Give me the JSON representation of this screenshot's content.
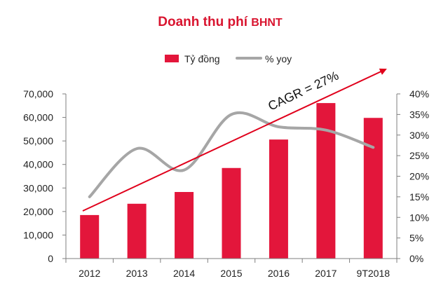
{
  "chart_data": {
    "type": "bar",
    "title_main": "Doanh thu phí ",
    "title_suffix": "BHNT",
    "categories": [
      "2012",
      "2013",
      "2014",
      "2015",
      "2016",
      "2017",
      "9T2018"
    ],
    "series": [
      {
        "name": "Tỷ đồng",
        "type": "bar",
        "axis": "left",
        "values": [
          18500,
          23300,
          28300,
          38500,
          50600,
          66100,
          59800
        ]
      },
      {
        "name": "% yoy",
        "type": "line",
        "axis": "right",
        "smooth": true,
        "values": [
          15,
          26.7,
          21.5,
          35,
          32,
          31.2,
          27
        ]
      }
    ],
    "left_axis": {
      "ylim": [
        0,
        70000
      ],
      "ticks": [
        "0",
        "10,000",
        "20,000",
        "30,000",
        "40,000",
        "50,000",
        "60,000",
        "70,000"
      ]
    },
    "right_axis": {
      "ylim": [
        0,
        40
      ],
      "ticks": [
        "0%",
        "5%",
        "10%",
        "15%",
        "20%",
        "25%",
        "30%",
        "35%",
        "40%"
      ]
    },
    "annotation": {
      "text": "CAGR = 27%"
    },
    "legend_position": "top-center",
    "grid": false,
    "colors": {
      "bar": "#e3163b",
      "line": "#a6a6a6",
      "arrow": "#e0001b",
      "title": "#d9142f",
      "axis": "#7f7f7f"
    }
  }
}
